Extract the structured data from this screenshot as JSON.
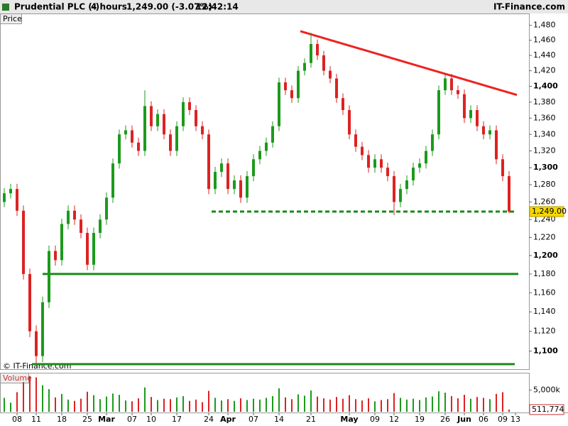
{
  "chart_data": {
    "type": "candlestick",
    "title": "Prudential PLC (-)",
    "interval": "4 hours",
    "last_change": "1,249.00 (-3.07%)",
    "time": "12:42:14",
    "brand": "IT-Finance.com",
    "copyright": "© IT-Finance.com",
    "price_pane_label": "Price",
    "volume_pane_label": "Volume",
    "log_scale": true,
    "up_color": "#1c9a1c",
    "down_color": "#dd2222",
    "open": [
      1260,
      1270,
      1275,
      1250,
      1180,
      1120,
      1095,
      1150,
      1205,
      1195,
      1235,
      1250,
      1240,
      1225,
      1190,
      1225,
      1240,
      1265,
      1305,
      1340,
      1345,
      1330,
      1320,
      1375,
      1350,
      1365,
      1340,
      1320,
      1350,
      1380,
      1370,
      1350,
      1340,
      1275,
      1295,
      1305,
      1275,
      1285,
      1265,
      1290,
      1310,
      1320,
      1330,
      1350,
      1405,
      1395,
      1385,
      1420,
      1430,
      1455,
      1440,
      1420,
      1410,
      1385,
      1370,
      1340,
      1325,
      1315,
      1300,
      1310,
      1300,
      1290,
      1260,
      1275,
      1285,
      1300,
      1305,
      1320,
      1340,
      1395,
      1410,
      1395,
      1390,
      1360,
      1370,
      1350,
      1340,
      1345,
      1310,
      1290
    ],
    "high": [
      1276,
      1281,
      1281,
      1256,
      1186,
      1126,
      1156,
      1211,
      1211,
      1241,
      1256,
      1256,
      1246,
      1231,
      1231,
      1246,
      1271,
      1311,
      1346,
      1351,
      1351,
      1336,
      1395,
      1381,
      1371,
      1371,
      1346,
      1356,
      1386,
      1386,
      1376,
      1356,
      1346,
      1301,
      1311,
      1311,
      1291,
      1291,
      1296,
      1316,
      1326,
      1336,
      1356,
      1411,
      1411,
      1401,
      1426,
      1436,
      1470,
      1461,
      1446,
      1426,
      1416,
      1391,
      1376,
      1346,
      1331,
      1321,
      1316,
      1316,
      1306,
      1296,
      1281,
      1291,
      1306,
      1311,
      1326,
      1346,
      1401,
      1415,
      1416,
      1401,
      1396,
      1376,
      1376,
      1356,
      1351,
      1351,
      1316,
      1296
    ],
    "low": [
      1254,
      1264,
      1244,
      1174,
      1114,
      1088,
      1089,
      1144,
      1189,
      1189,
      1229,
      1234,
      1219,
      1184,
      1184,
      1219,
      1234,
      1259,
      1299,
      1334,
      1324,
      1314,
      1314,
      1344,
      1344,
      1334,
      1314,
      1314,
      1344,
      1364,
      1344,
      1334,
      1269,
      1269,
      1289,
      1269,
      1269,
      1259,
      1259,
      1284,
      1304,
      1314,
      1324,
      1344,
      1389,
      1379,
      1379,
      1414,
      1424,
      1434,
      1414,
      1404,
      1379,
      1364,
      1334,
      1319,
      1309,
      1294,
      1294,
      1294,
      1284,
      1245,
      1254,
      1269,
      1279,
      1294,
      1299,
      1314,
      1334,
      1389,
      1389,
      1384,
      1354,
      1354,
      1344,
      1334,
      1334,
      1304,
      1284,
      1247
    ],
    "close": [
      1270,
      1275,
      1250,
      1180,
      1120,
      1095,
      1150,
      1205,
      1195,
      1235,
      1250,
      1240,
      1225,
      1190,
      1225,
      1240,
      1265,
      1305,
      1340,
      1345,
      1330,
      1320,
      1375,
      1350,
      1365,
      1340,
      1320,
      1350,
      1380,
      1370,
      1350,
      1340,
      1275,
      1295,
      1305,
      1275,
      1285,
      1265,
      1290,
      1310,
      1320,
      1330,
      1350,
      1405,
      1395,
      1385,
      1420,
      1430,
      1455,
      1440,
      1420,
      1410,
      1385,
      1370,
      1340,
      1325,
      1315,
      1300,
      1310,
      1300,
      1290,
      1260,
      1275,
      1285,
      1300,
      1305,
      1320,
      1340,
      1395,
      1410,
      1395,
      1390,
      1360,
      1370,
      1350,
      1340,
      1345,
      1310,
      1290,
      1249
    ],
    "volume": [
      3200000,
      2100000,
      4500000,
      6800000,
      8200000,
      7900000,
      6100000,
      5200000,
      3300000,
      4100000,
      2800000,
      2500000,
      3000000,
      4600000,
      3800000,
      2900000,
      3500000,
      4200000,
      3900000,
      2600000,
      2400000,
      3100000,
      5600000,
      3400000,
      2700000,
      3000000,
      2900000,
      3300000,
      3600000,
      2500000,
      2800000,
      2200000,
      4800000,
      3200000,
      2600000,
      2900000,
      2500000,
      3100000,
      2700000,
      3000000,
      2800000,
      3200000,
      3600000,
      5400000,
      3300000,
      2900000,
      4000000,
      3700000,
      4900000,
      3500000,
      3100000,
      2800000,
      3400000,
      3000000,
      3800000,
      2900000,
      2600000,
      3100000,
      2400000,
      2700000,
      2900000,
      4300000,
      3200000,
      2800000,
      3000000,
      2700000,
      3300000,
      3500000,
      4700000,
      4400000,
      3600000,
      3100000,
      3900000,
      3000000,
      3400000,
      3200000,
      2900000,
      4100000,
      4500000,
      511774
    ],
    "xticks": [
      {
        "value": 2,
        "label": "08"
      },
      {
        "value": 5,
        "label": "11"
      },
      {
        "value": 9,
        "label": "18"
      },
      {
        "value": 13,
        "label": "25"
      },
      {
        "value": 16,
        "label": "Mar"
      },
      {
        "value": 20,
        "label": "07"
      },
      {
        "value": 23,
        "label": "10"
      },
      {
        "value": 27,
        "label": "17"
      },
      {
        "value": 32,
        "label": "24"
      },
      {
        "value": 35,
        "label": "Apr"
      },
      {
        "value": 39,
        "label": "07"
      },
      {
        "value": 43,
        "label": "14"
      },
      {
        "value": 48,
        "label": "21"
      },
      {
        "value": 54,
        "label": "May"
      },
      {
        "value": 58,
        "label": "09"
      },
      {
        "value": 61,
        "label": "12"
      },
      {
        "value": 65,
        "label": "19"
      },
      {
        "value": 69,
        "label": "26"
      },
      {
        "value": 72,
        "label": "Jun"
      },
      {
        "value": 75,
        "label": "06"
      },
      {
        "value": 78,
        "label": "09"
      },
      {
        "value": 80,
        "label": "13"
      }
    ],
    "xlim": [
      0,
      80
    ],
    "ylim": [
      1082,
      1495
    ],
    "yticks": [
      {
        "value": 1100,
        "label": "1,100"
      },
      {
        "value": 1120,
        "label": "1,120"
      },
      {
        "value": 1140,
        "label": "1,140"
      },
      {
        "value": 1160,
        "label": "1,160"
      },
      {
        "value": 1180,
        "label": "1,180"
      },
      {
        "value": 1200,
        "label": "1,200"
      },
      {
        "value": 1220,
        "label": "1,220"
      },
      {
        "value": 1240,
        "label": "1,240"
      },
      {
        "value": 1260,
        "label": "1,260"
      },
      {
        "value": 1280,
        "label": "1,280"
      },
      {
        "value": 1300,
        "label": "1,300"
      },
      {
        "value": 1320,
        "label": "1,320"
      },
      {
        "value": 1340,
        "label": "1,340"
      },
      {
        "value": 1360,
        "label": "1,360"
      },
      {
        "value": 1380,
        "label": "1,380"
      },
      {
        "value": 1400,
        "label": "1,400"
      },
      {
        "value": 1420,
        "label": "1,420"
      },
      {
        "value": 1440,
        "label": "1,440"
      },
      {
        "value": 1460,
        "label": "1,460"
      },
      {
        "value": 1480,
        "label": "1,480"
      }
    ],
    "volume_ylim": [
      0,
      8800000
    ],
    "volume_yticks": [
      {
        "value": 5000000,
        "label": "5,000k"
      }
    ],
    "last_price": {
      "value": 1249,
      "label": "1,249.00"
    },
    "last_volume": {
      "value": 511774,
      "label": "511,774"
    },
    "levels": [
      {
        "value": 1249,
        "color": "#1a8a1a",
        "style": "dashed"
      },
      {
        "value": 1180,
        "color": "#1a8a1a",
        "style": "solid"
      },
      {
        "value": 1087,
        "color": "#1a8a1a",
        "style": "solid"
      }
    ],
    "trendline": {
      "from": 1472,
      "to": 1389,
      "color": "#ee2222"
    }
  }
}
